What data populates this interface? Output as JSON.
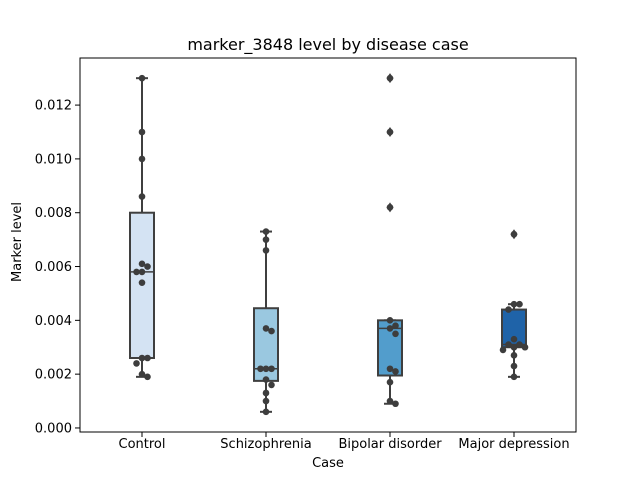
{
  "chart_data": {
    "type": "box",
    "title": "marker_3848 level by disease case",
    "xlabel": "Case",
    "ylabel": "Marker level",
    "ylim": [
      -0.00015,
      0.01375
    ],
    "yticks": [
      "0.000",
      "0.002",
      "0.004",
      "0.006",
      "0.008",
      "0.010",
      "0.012"
    ],
    "categories": [
      "Control",
      "Schizophrenia",
      "Bipolar disorder",
      "Major depression"
    ],
    "boxes": [
      {
        "name": "Control",
        "color": "#d4e3f3",
        "q1": 0.0026,
        "median": 0.0058,
        "q3": 0.008,
        "whislo": 0.0019,
        "whishi": 0.013,
        "fliers": []
      },
      {
        "name": "Schizophrenia",
        "color": "#9ac8e0",
        "q1": 0.00175,
        "median": 0.0022,
        "q3": 0.00445,
        "whislo": 0.0006,
        "whishi": 0.0073,
        "fliers": []
      },
      {
        "name": "Bipolar disorder",
        "color": "#529dcc",
        "q1": 0.00195,
        "median": 0.0037,
        "q3": 0.004,
        "whislo": 0.0009,
        "whishi": 0.004,
        "fliers": [
          0.0082,
          0.011,
          0.013
        ]
      },
      {
        "name": "Major depression",
        "color": "#1f63a8",
        "q1": 0.003,
        "median": 0.0031,
        "q3": 0.0044,
        "whislo": 0.0019,
        "whishi": 0.0046,
        "fliers": [
          0.0072
        ]
      }
    ],
    "points": [
      [
        0.013,
        0.011,
        0.01,
        0.0086,
        0.0061,
        0.006,
        0.0058,
        0.0058,
        0.0054,
        0.0026,
        0.0026,
        0.0024,
        0.002,
        0.0019
      ],
      [
        0.0073,
        0.007,
        0.0066,
        0.0037,
        0.0036,
        0.0022,
        0.0022,
        0.0022,
        0.0018,
        0.0016,
        0.0013,
        0.001,
        0.0006
      ],
      [
        0.013,
        0.011,
        0.0082,
        0.004,
        0.0038,
        0.0037,
        0.0035,
        0.0022,
        0.0021,
        0.0017,
        0.001,
        0.0009
      ],
      [
        0.0072,
        0.0046,
        0.0046,
        0.0044,
        0.0033,
        0.0031,
        0.0031,
        0.003,
        0.003,
        0.0029,
        0.0027,
        0.0023,
        0.0019
      ]
    ]
  }
}
